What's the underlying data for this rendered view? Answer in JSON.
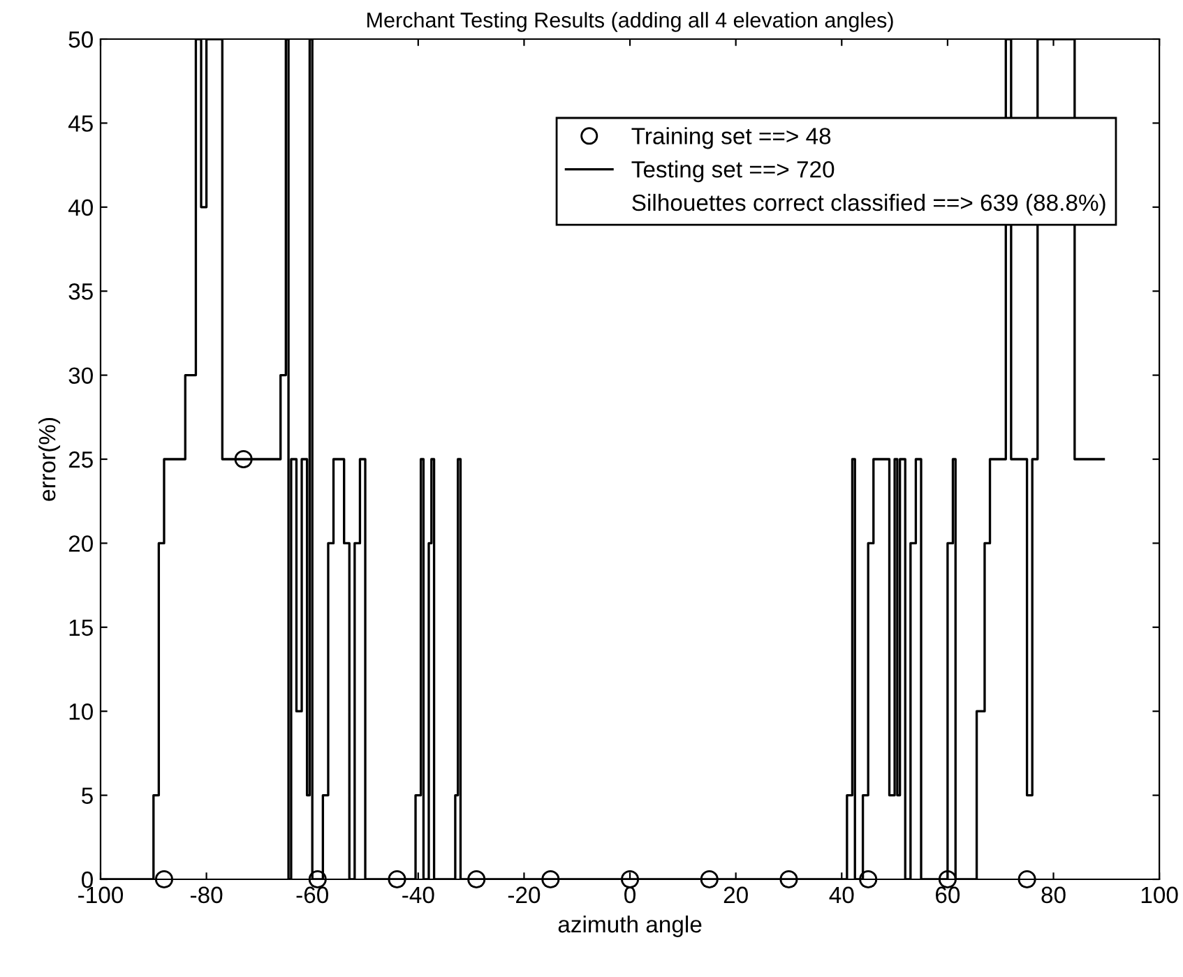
{
  "chart_data": {
    "type": "step",
    "title": "Merchant Testing Results (adding all 4 elevation angles)",
    "xlabel": "azimuth angle",
    "ylabel": "error(%)",
    "xlim": [
      -100,
      100
    ],
    "xticks": [
      -100,
      -80,
      -60,
      -40,
      -20,
      0,
      20,
      40,
      60,
      80,
      100
    ],
    "ylim": [
      0,
      50
    ],
    "yticks": [
      0,
      5,
      10,
      15,
      20,
      25,
      30,
      35,
      40,
      45,
      50
    ],
    "grid": false,
    "legend": "top right",
    "annotations": [
      "Silhouettes correct classified ==> 639 (88.8%)"
    ],
    "series": [
      {
        "name": "Training set ==> 48",
        "type": "scatter",
        "marker": "circle",
        "color": "#000000",
        "x": [
          -88,
          -73,
          -59,
          -44,
          -29,
          -15,
          0,
          15,
          30,
          45,
          60,
          75
        ],
        "values": [
          0,
          25,
          0,
          0,
          0,
          0,
          0,
          0,
          0,
          0,
          0,
          0
        ]
      },
      {
        "name": "Testing set ==> 720",
        "marker": "none",
        "color": "#000000",
        "x": [
          -100,
          -90,
          -89,
          -88,
          -84,
          -82,
          -81,
          -80,
          -77,
          -66,
          -65,
          -64.5,
          -64,
          -63,
          -62,
          -61,
          -60.5,
          -60,
          -58,
          -57,
          -56,
          -54,
          -53,
          -52,
          -51,
          -50,
          -40.5,
          -39.5,
          -39,
          -38,
          -37.5,
          -37,
          -33,
          -32.5,
          -32,
          41,
          42,
          42.5,
          44,
          45,
          46,
          49,
          50,
          50.5,
          51,
          52,
          53,
          54,
          55,
          60,
          61,
          61.5,
          65.5,
          67,
          68,
          71,
          72,
          75,
          76,
          77,
          83,
          84,
          89.5
        ],
        "values": [
          0,
          5,
          20,
          25,
          30,
          50,
          40,
          50,
          25,
          30,
          50,
          0,
          25,
          10,
          25,
          5,
          50,
          0,
          5,
          20,
          25,
          20,
          0,
          20,
          25,
          0,
          5,
          25,
          0,
          20,
          25,
          0,
          5,
          25,
          0,
          5,
          25,
          0,
          5,
          20,
          25,
          5,
          25,
          5,
          25,
          0,
          20,
          25,
          0,
          20,
          25,
          0,
          10,
          20,
          25,
          50,
          25,
          5,
          25,
          50,
          50,
          25,
          25
        ]
      }
    ]
  }
}
